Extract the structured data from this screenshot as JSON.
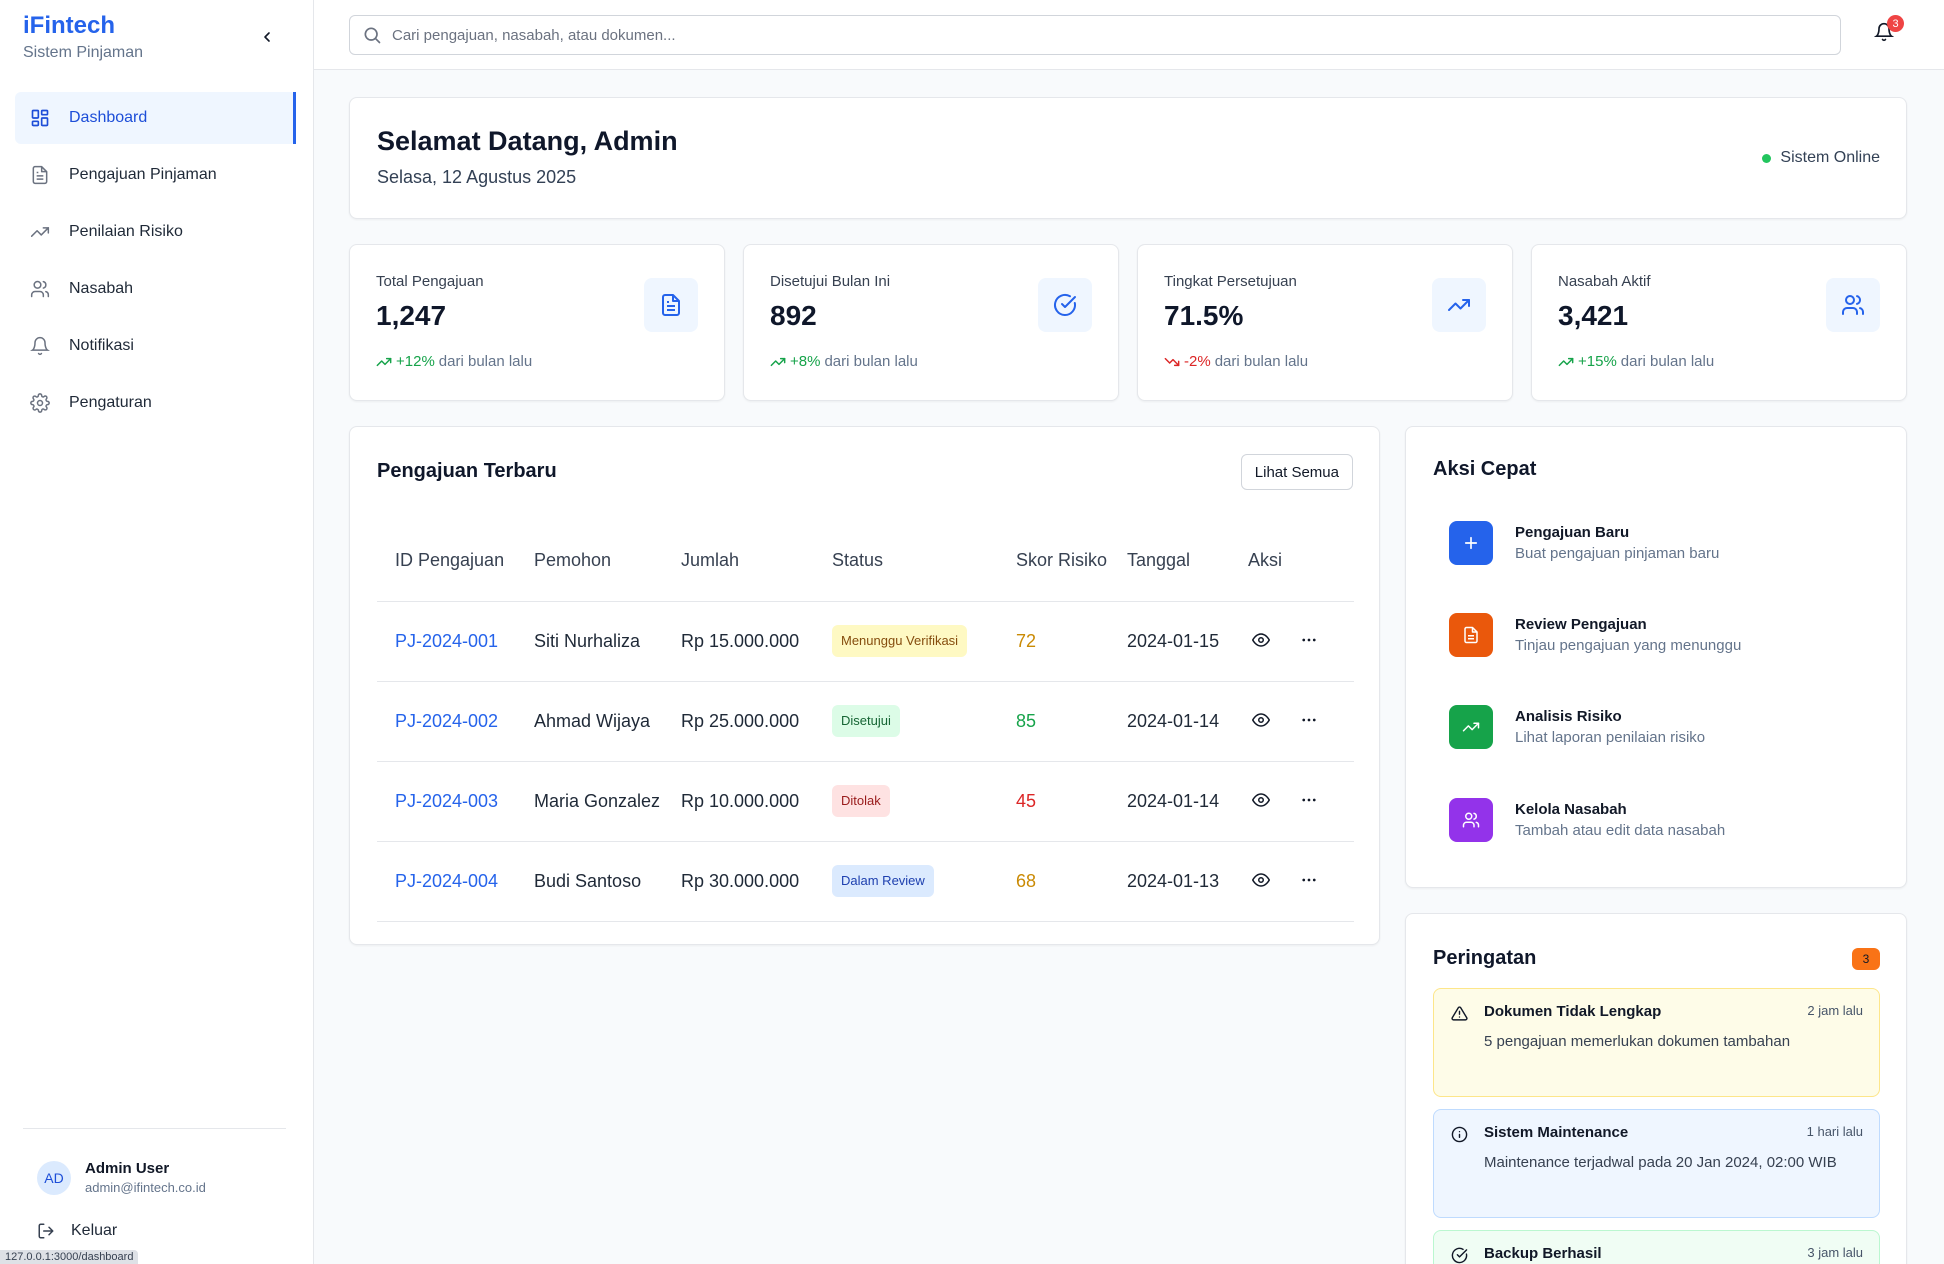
{
  "sidebar": {
    "brand": "iFintech",
    "subtitle": "Sistem Pinjaman",
    "items": [
      {
        "label": "Dashboard"
      },
      {
        "label": "Pengajuan Pinjaman"
      },
      {
        "label": "Penilaian Risiko"
      },
      {
        "label": "Nasabah"
      },
      {
        "label": "Notifikasi"
      },
      {
        "label": "Pengaturan"
      }
    ],
    "user": {
      "initials": "AD",
      "name": "Admin User",
      "email": "admin@ifintech.co.id"
    },
    "logout": "Keluar",
    "status_url": "127.0.0.1:3000/dashboard"
  },
  "header": {
    "search_placeholder": "Cari pengajuan, nasabah, atau dokumen...",
    "notif_count": "3"
  },
  "welcome": {
    "title": "Selamat Datang, Admin",
    "date": "Selasa, 12 Agustus 2025",
    "status": "Sistem Online"
  },
  "stats": [
    {
      "label": "Total Pengajuan",
      "value": "1,247",
      "change": "+12%",
      "suffix": "dari bulan lalu"
    },
    {
      "label": "Disetujui Bulan Ini",
      "value": "892",
      "change": "+8%",
      "suffix": "dari bulan lalu"
    },
    {
      "label": "Tingkat Persetujuan",
      "value": "71.5%",
      "change": "-2%",
      "suffix": "dari bulan lalu"
    },
    {
      "label": "Nasabah Aktif",
      "value": "3,421",
      "change": "+15%",
      "suffix": "dari bulan lalu"
    }
  ],
  "recent": {
    "title": "Pengajuan Terbaru",
    "see_all": "Lihat Semua",
    "columns": [
      "ID Pengajuan",
      "Pemohon",
      "Jumlah",
      "Status",
      "Skor Risiko",
      "Tanggal",
      "Aksi"
    ],
    "rows": [
      {
        "id": "PJ-2024-001",
        "name": "Siti Nurhaliza",
        "amount": "Rp 15.000.000",
        "status": "Menunggu Verifikasi",
        "score": "72",
        "date": "2024-01-15"
      },
      {
        "id": "PJ-2024-002",
        "name": "Ahmad Wijaya",
        "amount": "Rp 25.000.000",
        "status": "Disetujui",
        "score": "85",
        "date": "2024-01-14"
      },
      {
        "id": "PJ-2024-003",
        "name": "Maria Gonzalez",
        "amount": "Rp 10.000.000",
        "status": "Ditolak",
        "score": "45",
        "date": "2024-01-14"
      },
      {
        "id": "PJ-2024-004",
        "name": "Budi Santoso",
        "amount": "Rp 30.000.000",
        "status": "Dalam Review",
        "score": "68",
        "date": "2024-01-13"
      }
    ]
  },
  "quick": {
    "title": "Aksi Cepat",
    "items": [
      {
        "title": "Pengajuan Baru",
        "desc": "Buat pengajuan pinjaman baru"
      },
      {
        "title": "Review Pengajuan",
        "desc": "Tinjau pengajuan yang menunggu"
      },
      {
        "title": "Analisis Risiko",
        "desc": "Lihat laporan penilaian risiko"
      },
      {
        "title": "Kelola Nasabah",
        "desc": "Tambah atau edit data nasabah"
      }
    ]
  },
  "warnings": {
    "title": "Peringatan",
    "count": "3",
    "items": [
      {
        "title": "Dokumen Tidak Lengkap",
        "time": "2 jam lalu",
        "desc": "5 pengajuan memerlukan dokumen tambahan"
      },
      {
        "title": "Sistem Maintenance",
        "time": "1 hari lalu",
        "desc": "Maintenance terjadwal pada 20 Jan 2024, 02:00 WIB"
      },
      {
        "title": "Backup Berhasil",
        "time": "3 jam lalu",
        "desc": ""
      }
    ]
  },
  "colors": {
    "primary": "#2563eb",
    "up": "#16a34a",
    "down": "#dc2626",
    "score_mid": "#ca8a04",
    "score_high": "#16a34a",
    "score_low": "#dc2626"
  }
}
